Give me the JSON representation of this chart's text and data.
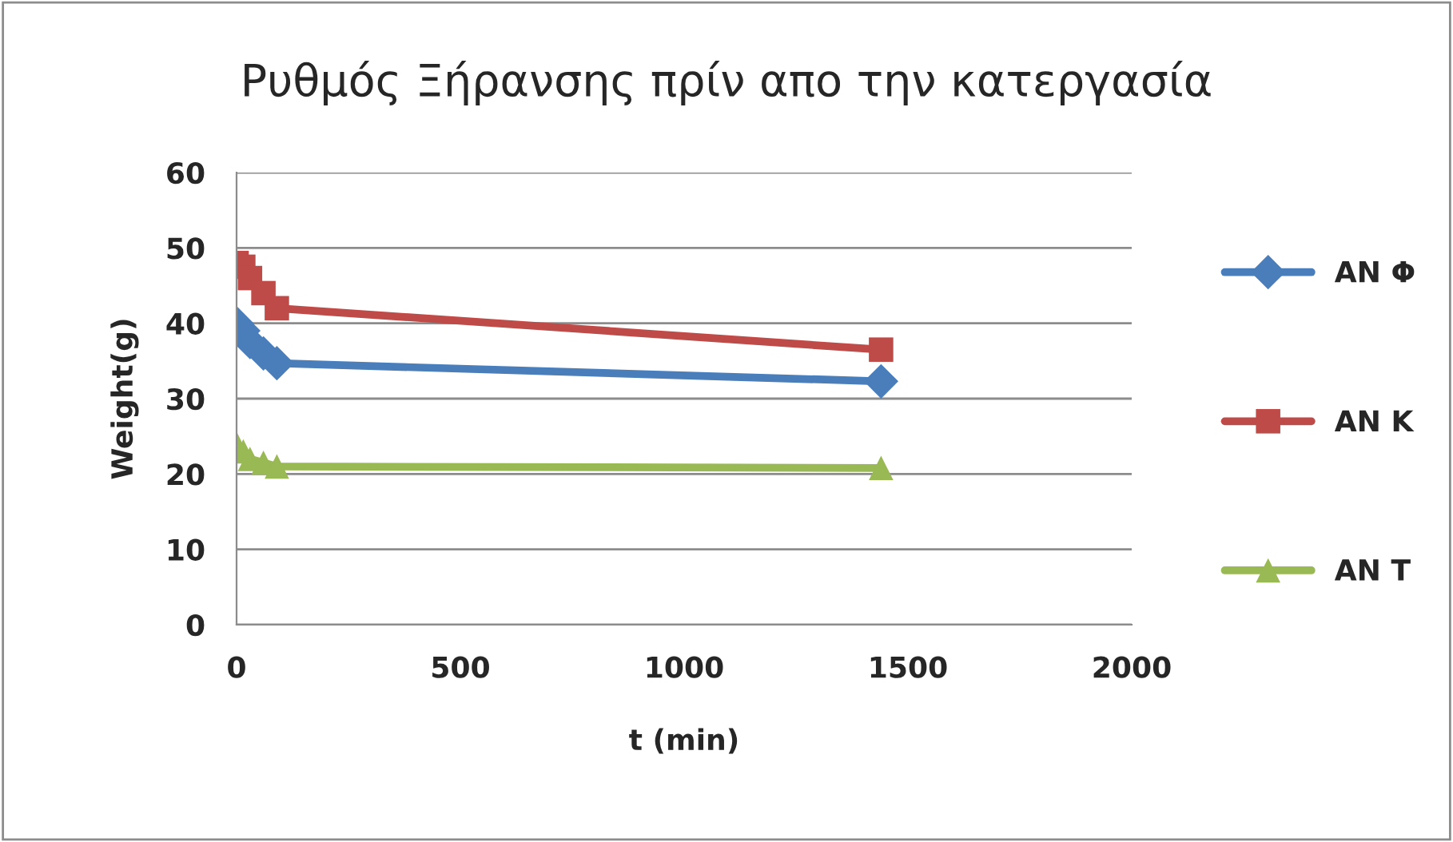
{
  "chart_data": {
    "type": "line",
    "title": "Ρυθμός Ξήρανσης πρίν απο την κατεργασία",
    "xlabel": "t (min)",
    "ylabel": "Weight(g)",
    "x": [
      0,
      15,
      30,
      60,
      90,
      1440
    ],
    "series": [
      {
        "name": "AN Φ",
        "color": "#4a7ebb",
        "marker": "diamond",
        "values": [
          40,
          39,
          37.5,
          36,
          34.7,
          32.3
        ]
      },
      {
        "name": "AN K",
        "color": "#be4b48",
        "marker": "square",
        "values": [
          48,
          47.5,
          46,
          44,
          42,
          36.5
        ]
      },
      {
        "name": "AN T",
        "color": "#98b954",
        "marker": "triangle",
        "values": [
          24,
          23,
          22,
          21.5,
          21,
          20.8
        ]
      }
    ],
    "xlim": [
      0,
      2000
    ],
    "xticks": [
      0,
      500,
      1000,
      1500,
      2000
    ],
    "ylim": [
      0,
      60
    ],
    "yticks": [
      0,
      10,
      20,
      30,
      40,
      50,
      60
    ],
    "grid": "y",
    "legend": "right",
    "line_style": "solid"
  }
}
